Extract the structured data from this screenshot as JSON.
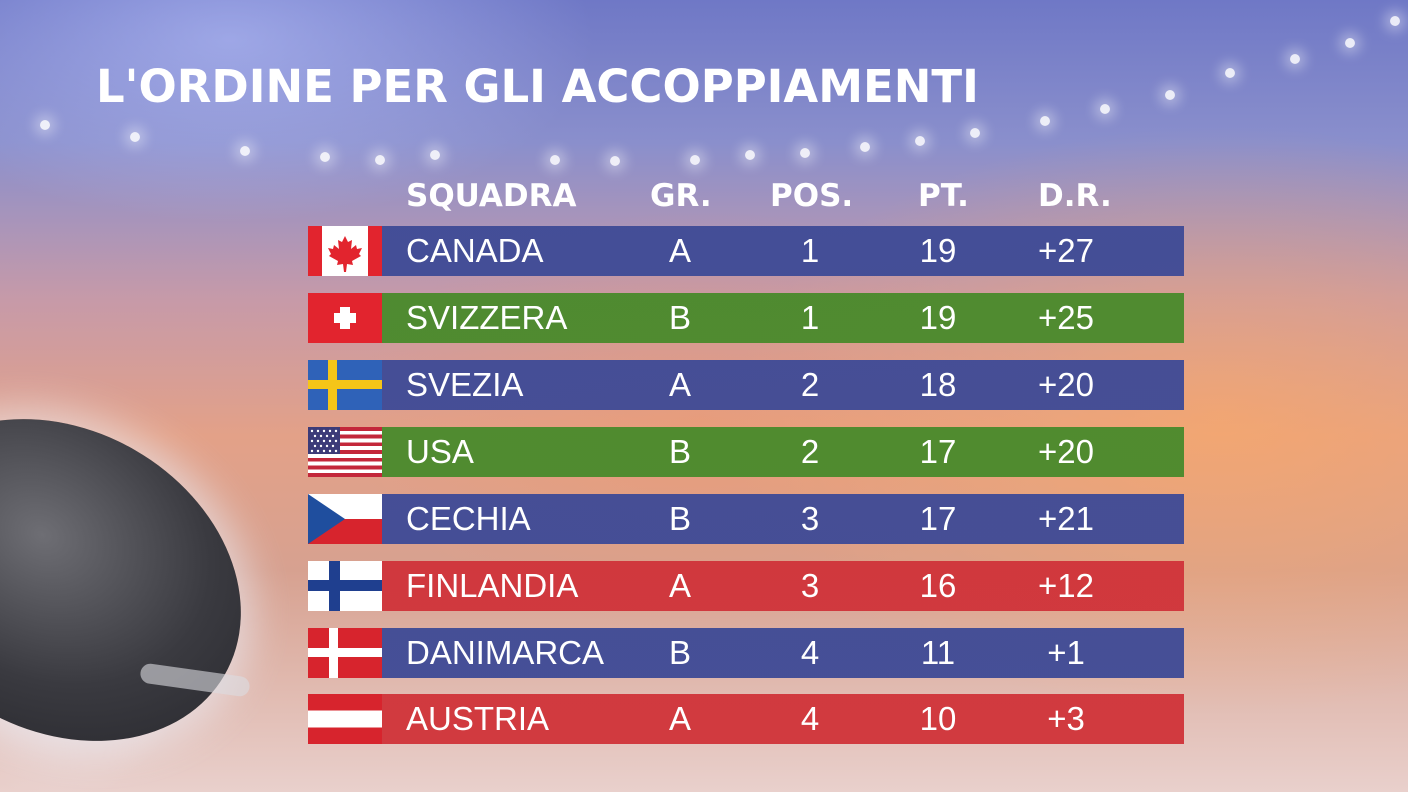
{
  "title": "L'ORDINE PER GLI ACCOPPIAMENTI",
  "columns": {
    "team": "SQUADRA",
    "group": "GR.",
    "position": "POS.",
    "points": "PT.",
    "goal_diff": "D.R."
  },
  "colors": {
    "group_a_blue": "#3f4b96",
    "group_b_green": "#4a8a2c",
    "red_row": "#d0343a"
  },
  "rows": [
    {
      "team": "CANADA",
      "group": "A",
      "position": "1",
      "points": "19",
      "goal_diff": "+27",
      "flag": "canada-flag",
      "row_color": "#3f4b96"
    },
    {
      "team": "SVIZZERA",
      "group": "B",
      "position": "1",
      "points": "19",
      "goal_diff": "+25",
      "flag": "switzerland-flag",
      "row_color": "#4a8a2c"
    },
    {
      "team": "SVEZIA",
      "group": "A",
      "position": "2",
      "points": "18",
      "goal_diff": "+20",
      "flag": "sweden-flag",
      "row_color": "#3f4b96"
    },
    {
      "team": "USA",
      "group": "B",
      "position": "2",
      "points": "17",
      "goal_diff": "+20",
      "flag": "usa-flag",
      "row_color": "#4a8a2c"
    },
    {
      "team": "CECHIA",
      "group": "B",
      "position": "3",
      "points": "17",
      "goal_diff": "+21",
      "flag": "czechia-flag",
      "row_color": "#3f4b96"
    },
    {
      "team": "FINLANDIA",
      "group": "A",
      "position": "3",
      "points": "16",
      "goal_diff": "+12",
      "flag": "finland-flag",
      "row_color": "#d0343a"
    },
    {
      "team": "DANIMARCA",
      "group": "B",
      "position": "4",
      "points": "11",
      "goal_diff": "+1",
      "flag": "denmark-flag",
      "row_color": "#3f4b96"
    },
    {
      "team": "AUSTRIA",
      "group": "A",
      "position": "4",
      "points": "10",
      "goal_diff": "+3",
      "flag": "austria-flag",
      "row_color": "#d0343a"
    }
  ]
}
